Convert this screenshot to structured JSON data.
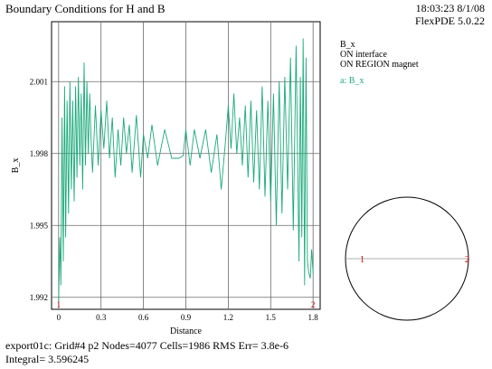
{
  "header": {
    "title": "Boundary Conditions for H and B",
    "timestamp": "18:03:23 8/1/08",
    "software": "FlexPDE 5.0.22"
  },
  "legend": {
    "lines": [
      "B_x",
      "ON interface",
      "ON REGION magnet"
    ],
    "series_label": "a: B_x",
    "series_color": "#1aaa78"
  },
  "footer": {
    "line1": "export01c:  Grid#4  p2  Nodes=4077 Cells=1986 RMS Err= 3.8e-6",
    "line2": "Integral=  3.596245"
  },
  "chart_data": {
    "type": "line",
    "xlabel": "Distance",
    "ylabel": "B_x",
    "xlim": [
      -0.05,
      1.85
    ],
    "ylim": [
      1.9915,
      2.0035
    ],
    "xticks": [
      0,
      0.3,
      0.6,
      0.9,
      1.2,
      1.5,
      1.8
    ],
    "xtick_labels": [
      "0",
      "0.3",
      "0.6",
      "0.9",
      "1.2",
      "1.5",
      "1.8"
    ],
    "yticks": [
      1.992,
      1.995,
      1.998,
      2.001
    ],
    "ytick_labels": [
      "1.992",
      "1.995",
      "1.998",
      "2.001"
    ],
    "grid": true,
    "end_markers": [
      "1",
      "2"
    ],
    "marker_color": "#cc0000",
    "series": [
      {
        "color": "#1aaa78",
        "x": [
          0,
          0.008,
          0.016,
          0.024,
          0.033,
          0.042,
          0.05,
          0.06,
          0.07,
          0.08,
          0.09,
          0.1,
          0.11,
          0.12,
          0.13,
          0.14,
          0.15,
          0.16,
          0.17,
          0.18,
          0.19,
          0.2,
          0.21,
          0.22,
          0.23,
          0.24,
          0.26,
          0.28,
          0.3,
          0.32,
          0.34,
          0.36,
          0.38,
          0.4,
          0.42,
          0.44,
          0.46,
          0.48,
          0.5,
          0.52,
          0.55,
          0.58,
          0.6,
          0.63,
          0.66,
          0.7,
          0.75,
          0.8,
          0.82,
          0.85,
          0.88,
          0.9,
          0.93,
          0.96,
          1.0,
          1.04,
          1.08,
          1.12,
          1.15,
          1.18,
          1.2,
          1.22,
          1.24,
          1.26,
          1.28,
          1.3,
          1.32,
          1.34,
          1.36,
          1.38,
          1.4,
          1.42,
          1.44,
          1.46,
          1.48,
          1.5,
          1.52,
          1.54,
          1.56,
          1.58,
          1.6,
          1.62,
          1.64,
          1.66,
          1.68,
          1.7,
          1.71,
          1.72,
          1.73,
          1.74,
          1.75,
          1.76,
          1.77,
          1.78,
          1.79,
          1.8
        ],
        "y": [
          1.9918,
          1.9945,
          1.9925,
          1.9995,
          1.9935,
          2.0008,
          1.9945,
          2.0002,
          1.9955,
          2.001,
          1.9965,
          2.0002,
          1.996,
          2.0008,
          1.997,
          2.0012,
          1.9975,
          2.0005,
          1.9965,
          2.0018,
          1.9975,
          2.001,
          1.998,
          2.0005,
          1.9985,
          1.9972,
          2.0,
          1.9975,
          1.9998,
          1.9982,
          2.0002,
          1.9978,
          1.9995,
          1.997,
          1.999,
          1.9975,
          1.9995,
          1.998,
          1.9992,
          1.9972,
          1.9996,
          1.997,
          1.9988,
          1.9978,
          1.9992,
          1.9975,
          1.999,
          1.9978,
          1.9978,
          1.9978,
          1.9979,
          1.999,
          1.9975,
          1.999,
          1.9978,
          1.999,
          1.9972,
          1.9988,
          1.9965,
          1.9985,
          2.0,
          1.9982,
          2.0005,
          1.998,
          1.9995,
          1.9975,
          2.0,
          1.997,
          2.0002,
          1.9968,
          1.9998,
          1.9965,
          2.0008,
          1.9962,
          2.0002,
          1.996,
          2.0005,
          1.995,
          2.001,
          1.9955,
          2.0012,
          1.9965,
          2.002,
          1.9948,
          2.0025,
          1.9935,
          2.0012,
          1.9945,
          2.0028,
          1.9925,
          2.002,
          1.9935,
          1.993,
          1.9928,
          1.994,
          1.993
        ]
      }
    ]
  },
  "inset": {
    "point_labels": [
      "1",
      "2"
    ]
  }
}
